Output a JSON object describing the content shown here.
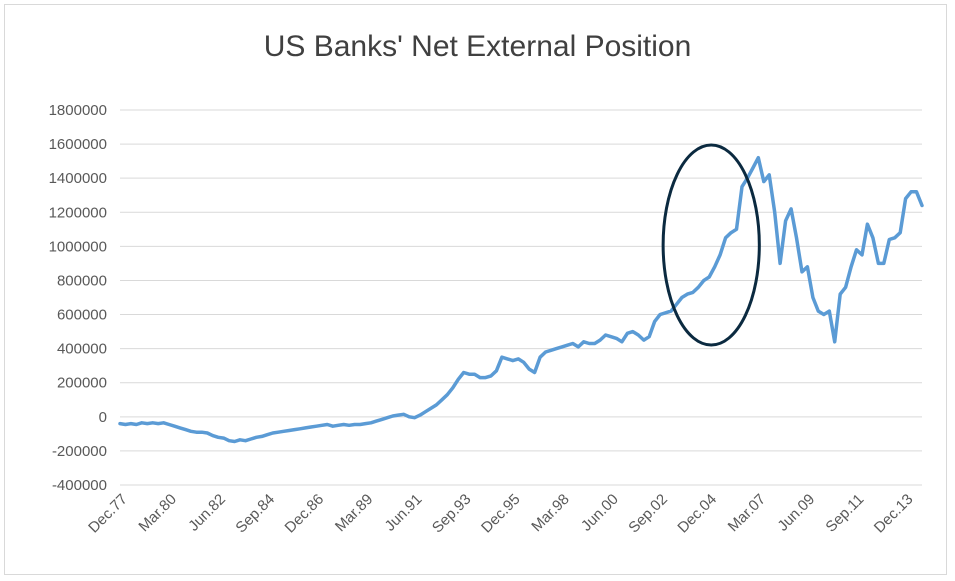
{
  "chart_data": {
    "type": "line",
    "title": "US Banks' Net External Position",
    "xlabel": "",
    "ylabel": "",
    "ylim": [
      -400000,
      1800000
    ],
    "y_ticks": [
      "1800000",
      "1600000",
      "1400000",
      "1200000",
      "1000000",
      "800000",
      "600000",
      "400000",
      "200000",
      "0",
      "-200000",
      "-400000"
    ],
    "x_tick_labels": [
      "Dec.77",
      "Mar.80",
      "Jun.82",
      "Sep.84",
      "Dec.86",
      "Mar.89",
      "Jun.91",
      "Sep.93",
      "Dec.95",
      "Mar.98",
      "Jun.00",
      "Sep.02",
      "Dec.04",
      "Mar.07",
      "Jun.09",
      "Sep.11",
      "Dec.13"
    ],
    "grid": true,
    "legend": "none",
    "series_color": "#5b9bd5",
    "annotation": {
      "shape": "ellipse",
      "color": "#0b2a40",
      "x_range": [
        "Sep.02",
        "Mar.07"
      ]
    },
    "series": [
      {
        "x": [
          "Dec.77",
          "Mar.78",
          "Jun.78",
          "Sep.78",
          "Dec.78",
          "Mar.79",
          "Jun.79",
          "Sep.79",
          "Dec.79",
          "Mar.80",
          "Jun.80",
          "Sep.80",
          "Dec.80",
          "Mar.81",
          "Jun.81",
          "Sep.81",
          "Dec.81",
          "Mar.82",
          "Jun.82",
          "Sep.82",
          "Dec.82",
          "Mar.83",
          "Jun.83",
          "Sep.83",
          "Dec.83",
          "Mar.84",
          "Jun.84",
          "Sep.84",
          "Dec.84",
          "Mar.85",
          "Jun.85",
          "Sep.85",
          "Dec.85",
          "Mar.86",
          "Jun.86",
          "Sep.86",
          "Dec.86",
          "Mar.87",
          "Jun.87",
          "Sep.87",
          "Dec.87",
          "Mar.88",
          "Jun.88",
          "Sep.88",
          "Dec.88",
          "Mar.89",
          "Jun.89",
          "Sep.89",
          "Dec.89",
          "Mar.90",
          "Jun.90",
          "Sep.90",
          "Dec.90",
          "Mar.91",
          "Jun.91",
          "Sep.91",
          "Dec.91",
          "Mar.92",
          "Jun.92",
          "Sep.92",
          "Dec.92",
          "Mar.93",
          "Jun.93",
          "Sep.93",
          "Dec.93",
          "Mar.94",
          "Jun.94",
          "Sep.94",
          "Dec.94",
          "Mar.95",
          "Jun.95",
          "Sep.95",
          "Dec.95",
          "Mar.96",
          "Jun.96",
          "Sep.96",
          "Dec.96",
          "Mar.97",
          "Jun.97",
          "Sep.97",
          "Dec.97",
          "Mar.98",
          "Jun.98",
          "Sep.98",
          "Dec.98",
          "Mar.99",
          "Jun.99",
          "Sep.99",
          "Dec.99",
          "Mar.00",
          "Jun.00",
          "Sep.00",
          "Dec.00",
          "Mar.01",
          "Jun.01",
          "Sep.01",
          "Dec.01",
          "Mar.02",
          "Jun.02",
          "Sep.02",
          "Dec.02",
          "Mar.03",
          "Jun.03",
          "Sep.03",
          "Dec.03",
          "Mar.04",
          "Jun.04",
          "Sep.04",
          "Dec.04",
          "Mar.05",
          "Jun.05",
          "Sep.05",
          "Dec.05",
          "Mar.06",
          "Jun.06",
          "Sep.06",
          "Dec.06",
          "Mar.07",
          "Jun.07",
          "Sep.07",
          "Dec.07",
          "Mar.08",
          "Jun.08",
          "Sep.08",
          "Dec.08",
          "Mar.09",
          "Jun.09",
          "Sep.09",
          "Dec.09",
          "Mar.10",
          "Jun.10",
          "Sep.10",
          "Dec.10",
          "Mar.11",
          "Jun.11",
          "Sep.11",
          "Dec.11",
          "Mar.12",
          "Jun.12",
          "Sep.12",
          "Dec.12",
          "Mar.13",
          "Jun.13",
          "Sep.13",
          "Dec.13",
          "Mar.14",
          "Jun.14",
          "Sep.14"
        ],
        "values": [
          -40000,
          -45000,
          -40000,
          -45000,
          -35000,
          -40000,
          -35000,
          -40000,
          -35000,
          -45000,
          -55000,
          -65000,
          -75000,
          -85000,
          -90000,
          -90000,
          -95000,
          -110000,
          -120000,
          -125000,
          -140000,
          -145000,
          -135000,
          -140000,
          -130000,
          -120000,
          -115000,
          -105000,
          -95000,
          -90000,
          -85000,
          -80000,
          -75000,
          -70000,
          -65000,
          -60000,
          -55000,
          -50000,
          -45000,
          -55000,
          -50000,
          -45000,
          -50000,
          -45000,
          -45000,
          -40000,
          -35000,
          -25000,
          -15000,
          -5000,
          5000,
          10000,
          15000,
          0,
          -5000,
          10000,
          30000,
          50000,
          70000,
          100000,
          130000,
          170000,
          220000,
          260000,
          250000,
          250000,
          230000,
          230000,
          240000,
          270000,
          350000,
          340000,
          330000,
          340000,
          320000,
          280000,
          260000,
          350000,
          380000,
          390000,
          400000,
          410000,
          420000,
          430000,
          410000,
          440000,
          430000,
          430000,
          450000,
          480000,
          470000,
          460000,
          440000,
          490000,
          500000,
          480000,
          450000,
          470000,
          560000,
          600000,
          610000,
          620000,
          660000,
          700000,
          720000,
          730000,
          760000,
          800000,
          820000,
          880000,
          950000,
          1050000,
          1080000,
          1100000,
          1350000,
          1400000,
          1460000,
          1520000,
          1380000,
          1420000,
          1200000,
          900000,
          1150000,
          1220000,
          1050000,
          850000,
          880000,
          700000,
          620000,
          600000,
          620000,
          440000,
          720000,
          760000,
          880000,
          980000,
          950000,
          1130000,
          1050000,
          900000,
          900000,
          1040000,
          1050000,
          1080000,
          1280000,
          1320000,
          1320000,
          1240000
        ]
      }
    ]
  }
}
